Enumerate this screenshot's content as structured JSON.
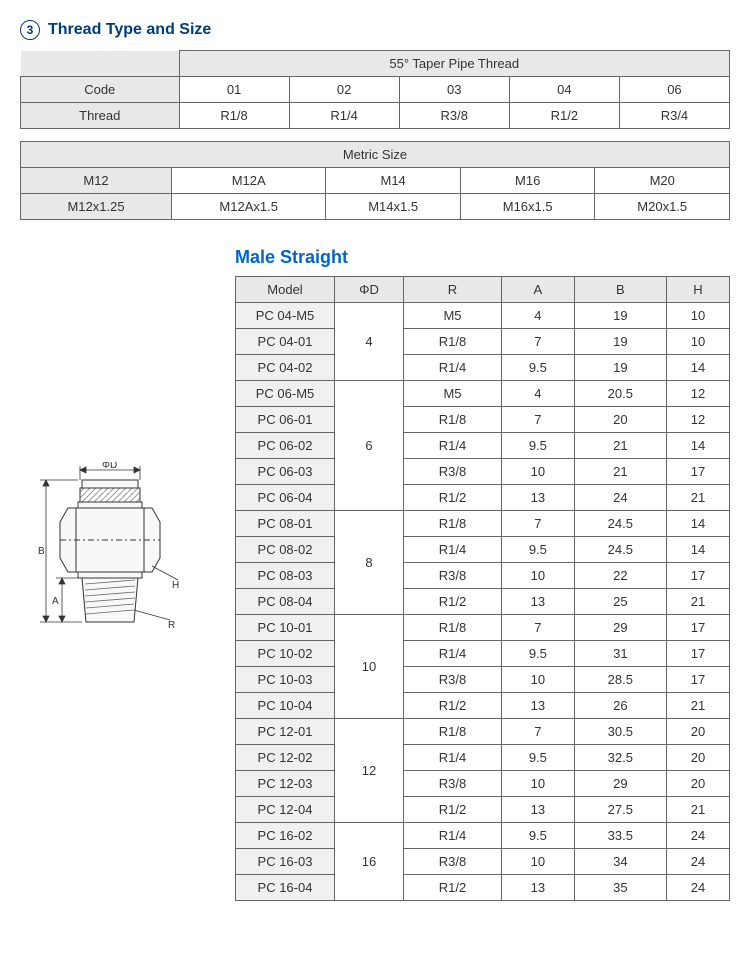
{
  "section": {
    "num": "3",
    "title": "Thread Type and Size"
  },
  "taper": {
    "header": "55° Taper Pipe Thread",
    "rowLabels": [
      "Code",
      "Thread"
    ],
    "codes": [
      "01",
      "02",
      "03",
      "04",
      "06"
    ],
    "threads": [
      "R1/8",
      "R1/4",
      "R3/8",
      "R1/2",
      "R3/4"
    ]
  },
  "metric": {
    "header": "Metric Size",
    "row1": [
      "M12",
      "M12A",
      "M14",
      "M16",
      "M20"
    ],
    "row2": [
      "M12x1.25",
      "M12Ax1.5",
      "M14x1.5",
      "M16x1.5",
      "M20x1.5"
    ]
  },
  "product": {
    "title": "Male Straight"
  },
  "mainHeaders": [
    "Model",
    "ΦD",
    "R",
    "A",
    "B",
    "H"
  ],
  "groups": [
    {
      "d": "4",
      "rows": [
        {
          "m": "PC 04-M5",
          "r": "M5",
          "a": "4",
          "b": "19",
          "h": "10"
        },
        {
          "m": "PC 04-01",
          "r": "R1/8",
          "a": "7",
          "b": "19",
          "h": "10"
        },
        {
          "m": "PC 04-02",
          "r": "R1/4",
          "a": "9.5",
          "b": "19",
          "h": "14"
        }
      ]
    },
    {
      "d": "6",
      "rows": [
        {
          "m": "PC 06-M5",
          "r": "M5",
          "a": "4",
          "b": "20.5",
          "h": "12"
        },
        {
          "m": "PC 06-01",
          "r": "R1/8",
          "a": "7",
          "b": "20",
          "h": "12"
        },
        {
          "m": "PC 06-02",
          "r": "R1/4",
          "a": "9.5",
          "b": "21",
          "h": "14"
        },
        {
          "m": "PC 06-03",
          "r": "R3/8",
          "a": "10",
          "b": "21",
          "h": "17"
        },
        {
          "m": "PC 06-04",
          "r": "R1/2",
          "a": "13",
          "b": "24",
          "h": "21"
        }
      ]
    },
    {
      "d": "8",
      "rows": [
        {
          "m": "PC 08-01",
          "r": "R1/8",
          "a": "7",
          "b": "24.5",
          "h": "14"
        },
        {
          "m": "PC 08-02",
          "r": "R1/4",
          "a": "9.5",
          "b": "24.5",
          "h": "14"
        },
        {
          "m": "PC 08-03",
          "r": "R3/8",
          "a": "10",
          "b": "22",
          "h": "17"
        },
        {
          "m": "PC 08-04",
          "r": "R1/2",
          "a": "13",
          "b": "25",
          "h": "21"
        }
      ]
    },
    {
      "d": "10",
      "rows": [
        {
          "m": "PC 10-01",
          "r": "R1/8",
          "a": "7",
          "b": "29",
          "h": "17"
        },
        {
          "m": "PC 10-02",
          "r": "R1/4",
          "a": "9.5",
          "b": "31",
          "h": "17"
        },
        {
          "m": "PC 10-03",
          "r": "R3/8",
          "a": "10",
          "b": "28.5",
          "h": "17"
        },
        {
          "m": "PC 10-04",
          "r": "R1/2",
          "a": "13",
          "b": "26",
          "h": "21"
        }
      ]
    },
    {
      "d": "12",
      "rows": [
        {
          "m": "PC 12-01",
          "r": "R1/8",
          "a": "7",
          "b": "30.5",
          "h": "20"
        },
        {
          "m": "PC 12-02",
          "r": "R1/4",
          "a": "9.5",
          "b": "32.5",
          "h": "20"
        },
        {
          "m": "PC 12-03",
          "r": "R3/8",
          "a": "10",
          "b": "29",
          "h": "20"
        },
        {
          "m": "PC 12-04",
          "r": "R1/2",
          "a": "13",
          "b": "27.5",
          "h": "21"
        }
      ]
    },
    {
      "d": "16",
      "rows": [
        {
          "m": "PC 16-02",
          "r": "R1/4",
          "a": "9.5",
          "b": "33.5",
          "h": "24"
        },
        {
          "m": "PC 16-03",
          "r": "R3/8",
          "a": "10",
          "b": "34",
          "h": "24"
        },
        {
          "m": "PC 16-04",
          "r": "R1/2",
          "a": "13",
          "b": "35",
          "h": "24"
        }
      ]
    }
  ],
  "diagramLabels": {
    "phiD": "ΦD",
    "B": "B",
    "A": "A",
    "H": "H",
    "R": "R"
  }
}
